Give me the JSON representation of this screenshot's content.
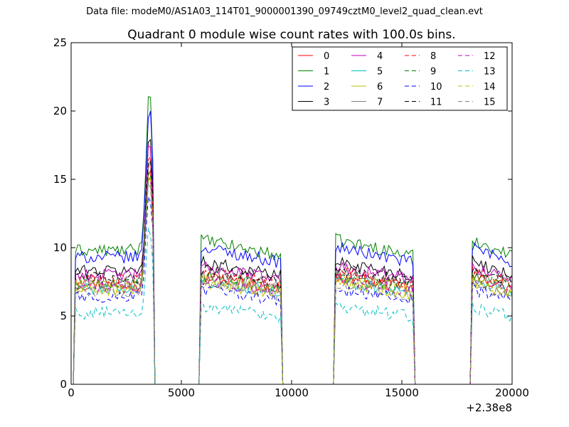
{
  "header": {
    "file_label": "Data file: modeM0/AS1A03_114T01_9000001390_09749cztM0_level2_quad_clean.evt"
  },
  "chart_data": {
    "type": "line",
    "title": "Quadrant 0 module wise count rates with 100.0s bins.",
    "xlabel": "",
    "ylabel": "",
    "x_offset_label": "+2.38e8",
    "xlim": [
      0,
      20000
    ],
    "ylim": [
      0,
      25
    ],
    "xticks": [
      0,
      5000,
      10000,
      15000,
      20000
    ],
    "yticks": [
      0,
      5,
      10,
      15,
      20,
      25
    ],
    "grid": false,
    "legend_position": "top-right",
    "legend_columns": 4,
    "bin_seconds": 100,
    "segments": [
      {
        "start": 200,
        "end": 3700,
        "flare": true
      },
      {
        "start": 5900,
        "end": 9500
      },
      {
        "start": 12000,
        "end": 15500
      },
      {
        "start": 18200,
        "end": 20000
      }
    ],
    "series": [
      {
        "name": "0",
        "color": "#ff0000",
        "dashed": false,
        "level": 7.3
      },
      {
        "name": "1",
        "color": "#008000",
        "dashed": false,
        "level": 9.8
      },
      {
        "name": "2",
        "color": "#0000ff",
        "dashed": false,
        "level": 9.3
      },
      {
        "name": "3",
        "color": "#000000",
        "dashed": false,
        "level": 8.3
      },
      {
        "name": "4",
        "color": "#bf00bf",
        "dashed": false,
        "level": 8.0
      },
      {
        "name": "5",
        "color": "#00bfbf",
        "dashed": false,
        "level": 7.0
      },
      {
        "name": "6",
        "color": "#bfbf00",
        "dashed": false,
        "level": 6.9
      },
      {
        "name": "7",
        "color": "#808080",
        "dashed": false,
        "level": 7.5
      },
      {
        "name": "8",
        "color": "#ff0000",
        "dashed": true,
        "level": 7.6
      },
      {
        "name": "9",
        "color": "#008000",
        "dashed": true,
        "level": 7.4
      },
      {
        "name": "10",
        "color": "#0000ff",
        "dashed": true,
        "level": 6.4
      },
      {
        "name": "11",
        "color": "#000000",
        "dashed": true,
        "level": 7.8
      },
      {
        "name": "12",
        "color": "#bf00bf",
        "dashed": true,
        "level": 7.1
      },
      {
        "name": "13",
        "color": "#00bfbf",
        "dashed": true,
        "level": 5.2
      },
      {
        "name": "14",
        "color": "#bfbf00",
        "dashed": true,
        "level": 7.2
      },
      {
        "name": "15",
        "color": "#808080",
        "dashed": true,
        "level": 6.8
      }
    ]
  }
}
